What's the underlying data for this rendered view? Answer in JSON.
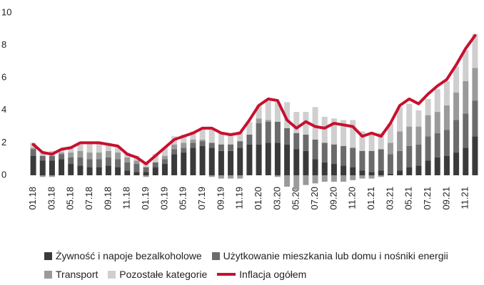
{
  "chart_data": {
    "type": "bar",
    "stacked": true,
    "categories": [
      "01.18",
      null,
      "03.18",
      null,
      "05.18",
      null,
      "07.18",
      null,
      "09.18",
      null,
      "11.18",
      null,
      "01.19",
      null,
      "03.19",
      null,
      "05.19",
      null,
      "07.19",
      null,
      "09.19",
      null,
      "11.19",
      null,
      "01.20",
      null,
      "03.20",
      null,
      "05.20",
      null,
      "07.20",
      null,
      "09.20",
      null,
      "11.20",
      null,
      "01.21",
      null,
      "03.21",
      null,
      "05.21",
      null,
      "07.21",
      null,
      "09.21",
      null,
      "11.21",
      null
    ],
    "series": [
      {
        "name": "Żywność i napoje bezalkoholowe",
        "color": "#3a3a3a",
        "values": [
          1.2,
          0.9,
          0.9,
          1.0,
          0.7,
          0.6,
          0.5,
          0.5,
          0.6,
          0.5,
          0.3,
          0.2,
          0.2,
          0.5,
          0.7,
          1.3,
          1.4,
          1.7,
          1.8,
          1.7,
          1.5,
          1.5,
          1.7,
          1.9,
          1.9,
          2.0,
          2.0,
          1.9,
          1.6,
          1.5,
          1.0,
          0.8,
          0.7,
          0.6,
          0.5,
          0.3,
          0.2,
          0.3,
          0.1,
          0.3,
          0.5,
          0.6,
          0.9,
          1.1,
          1.2,
          1.4,
          1.7,
          2.4
        ]
      },
      {
        "name": "Użytkowanie mieszkania lub domu i nośniki energii",
        "color": "#6b6b6b",
        "values": [
          0.4,
          0.3,
          0.3,
          0.3,
          0.4,
          0.5,
          0.5,
          0.5,
          0.5,
          0.5,
          0.5,
          0.5,
          0.3,
          0.3,
          0.3,
          0.3,
          0.3,
          0.3,
          0.3,
          0.3,
          0.4,
          0.4,
          0.4,
          0.6,
          1.3,
          1.3,
          1.3,
          1.0,
          1.0,
          1.0,
          1.2,
          1.2,
          1.2,
          1.2,
          1.2,
          1.2,
          1.3,
          1.3,
          1.2,
          1.2,
          1.3,
          1.3,
          1.5,
          1.5,
          1.6,
          2.0,
          2.1,
          2.2
        ]
      },
      {
        "name": "Transport",
        "color": "#9a9a9a",
        "values": [
          0.1,
          -0.1,
          -0.1,
          0.1,
          0.3,
          0.4,
          0.4,
          0.4,
          0.4,
          0.4,
          0.3,
          0.2,
          -0.1,
          0.0,
          0.2,
          0.3,
          0.3,
          0.2,
          0.1,
          -0.1,
          -0.2,
          -0.2,
          -0.2,
          0.0,
          0.3,
          0.1,
          -0.1,
          -0.7,
          -0.9,
          -0.6,
          -0.5,
          -0.4,
          -0.4,
          -0.4,
          -0.3,
          -0.2,
          -0.2,
          -0.1,
          0.7,
          1.2,
          1.2,
          1.1,
          1.3,
          1.3,
          1.5,
          1.7,
          2.0,
          2.0
        ]
      },
      {
        "name": "Pozostałe kategorie",
        "color": "#cfcfcf",
        "values": [
          0.3,
          0.3,
          0.3,
          0.2,
          0.3,
          0.5,
          0.6,
          0.6,
          0.5,
          0.4,
          0.3,
          0.3,
          0.3,
          0.5,
          0.5,
          0.5,
          0.5,
          0.5,
          0.7,
          0.8,
          0.7,
          0.7,
          0.6,
          0.8,
          0.8,
          1.2,
          1.2,
          1.6,
          1.3,
          1.4,
          2.0,
          1.6,
          1.6,
          1.6,
          1.7,
          1.2,
          1.1,
          1.0,
          1.2,
          1.5,
          1.4,
          1.0,
          1.0,
          1.4,
          1.5,
          1.6,
          1.9,
          2.1
        ]
      },
      {
        "name": "Inflacja ogółem",
        "color": "#c8102e",
        "type": "line",
        "values": [
          1.9,
          1.4,
          1.3,
          1.6,
          1.7,
          2.0,
          2.0,
          2.0,
          1.9,
          1.8,
          1.3,
          1.1,
          0.7,
          1.2,
          1.7,
          2.2,
          2.4,
          2.6,
          2.9,
          2.9,
          2.6,
          2.5,
          2.6,
          3.4,
          4.3,
          4.7,
          4.6,
          3.4,
          2.9,
          3.3,
          3.0,
          2.9,
          3.2,
          3.1,
          3.0,
          2.4,
          2.6,
          2.4,
          3.2,
          4.3,
          4.7,
          4.4,
          5.0,
          5.5,
          5.9,
          6.8,
          7.8,
          8.6
        ]
      }
    ],
    "ylim": [
      -1,
      10
    ],
    "yticks": [
      0,
      2,
      4,
      6,
      8,
      10
    ],
    "grid": false
  }
}
